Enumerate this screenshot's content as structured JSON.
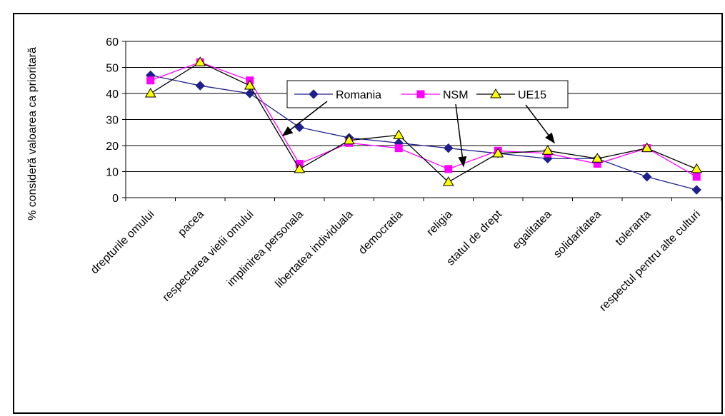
{
  "chart_data": {
    "type": "line",
    "title": "",
    "xlabel": "",
    "ylabel": "% consideră valoarea ca prioritară",
    "ylim": [
      0,
      60
    ],
    "yticks": [
      0,
      10,
      20,
      30,
      40,
      50,
      60
    ],
    "grid": true,
    "legend_position": "top-center",
    "categories": [
      "drepturile omului",
      "pacea",
      "respectarea vietii omului",
      "implinirea personala",
      "libertatea individuala",
      "democratia",
      "religia",
      "statul de drept",
      "egalitatea",
      "solidaritatea",
      "toleranta",
      "respectul pentru alte culturi"
    ],
    "series": [
      {
        "name": "Romania",
        "color": "#1f1f8c",
        "marker": "diamond",
        "values": [
          47,
          43,
          40,
          27,
          23,
          21,
          19,
          17,
          15,
          15,
          8,
          3
        ]
      },
      {
        "name": "NSM",
        "color": "#ff00ff",
        "marker": "square",
        "values": [
          45,
          52,
          45,
          13,
          21,
          19,
          11,
          18,
          17,
          13,
          19,
          8
        ]
      },
      {
        "name": "UE15",
        "color": "#000000",
        "marker_fill": "#ffff00",
        "marker": "triangle",
        "values": [
          40,
          52,
          43,
          11,
          22,
          24,
          6,
          17,
          18,
          15,
          19,
          11
        ]
      }
    ]
  }
}
